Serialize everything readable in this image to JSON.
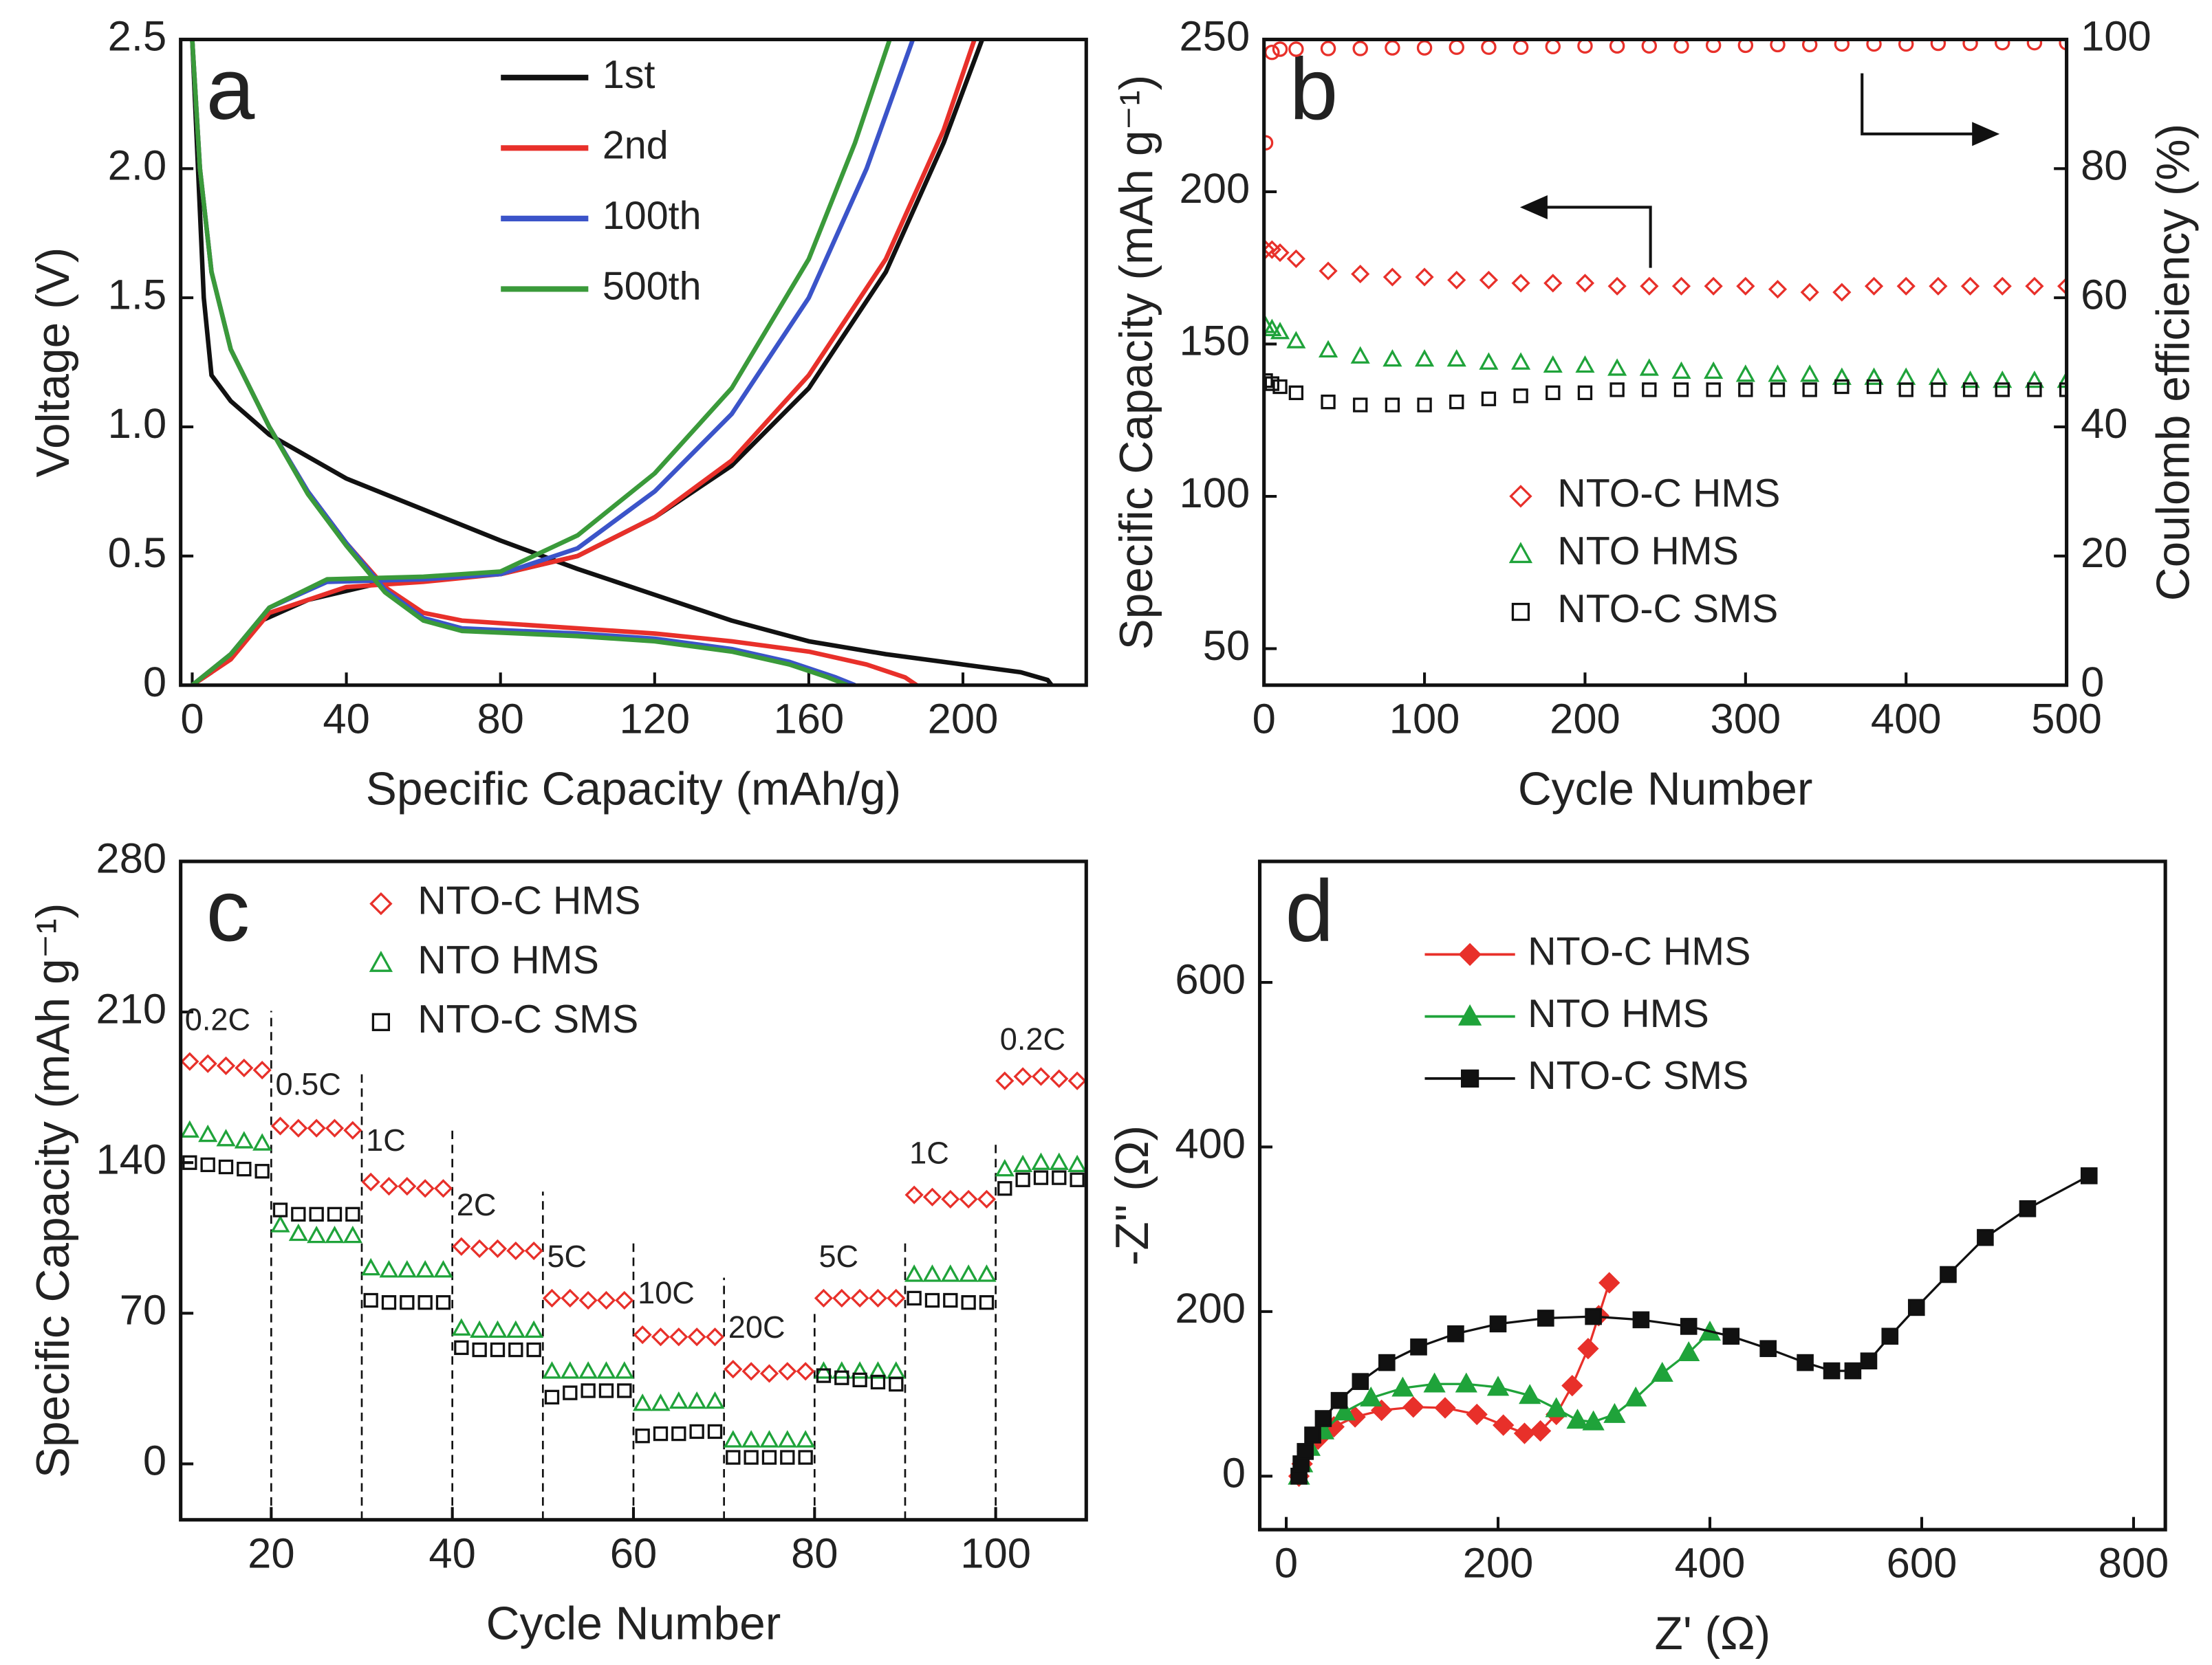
{
  "chart_data": [
    {
      "type": "line",
      "label": "a",
      "x_label": "Specific Capacity (mAh/g)",
      "y_label": "Voltage (V)",
      "xlim": [
        -3,
        232
      ],
      "ylim": [
        0,
        2.5
      ],
      "xticks": [
        0,
        40,
        80,
        120,
        160,
        200
      ],
      "yticks": [
        0,
        0.5,
        {
          "value": 1,
          "label": "1.0"
        },
        1.5,
        {
          "value": 2,
          "label": "2.0"
        },
        2.5
      ],
      "series": [
        {
          "name": "1st",
          "color": "#111111",
          "x": [
            0,
            3,
            5,
            10,
            20,
            40,
            60,
            80,
            100,
            120,
            140,
            160,
            180,
            200,
            215,
            222,
            223,
            null,
            0,
            5,
            10,
            18,
            30,
            50,
            80,
            100,
            120,
            140,
            160,
            180,
            195,
            205
          ],
          "values": [
            2.5,
            1.5,
            1.2,
            1.1,
            0.97,
            0.8,
            0.68,
            0.56,
            0.45,
            0.35,
            0.25,
            0.17,
            0.12,
            0.08,
            0.05,
            0.02,
            0,
            null,
            0,
            0.05,
            0.12,
            0.25,
            0.33,
            0.4,
            0.43,
            0.5,
            0.65,
            0.85,
            1.15,
            1.6,
            2.1,
            2.5
          ]
        },
        {
          "name": "2nd",
          "color": "#e8302a",
          "x": [
            0,
            2,
            5,
            10,
            20,
            30,
            40,
            50,
            60,
            70,
            100,
            120,
            140,
            160,
            175,
            185,
            188,
            null,
            0,
            10,
            20,
            40,
            60,
            80,
            100,
            120,
            140,
            160,
            180,
            195,
            203
          ],
          "values": [
            2.5,
            2.0,
            1.6,
            1.3,
            1.0,
            0.75,
            0.55,
            0.38,
            0.28,
            0.25,
            0.22,
            0.2,
            0.17,
            0.13,
            0.08,
            0.03,
            0,
            null,
            0,
            0.1,
            0.28,
            0.38,
            0.4,
            0.43,
            0.5,
            0.65,
            0.87,
            1.2,
            1.65,
            2.15,
            2.5
          ]
        },
        {
          "name": "100th",
          "color": "#3b54c9",
          "x": [
            0,
            2,
            5,
            10,
            20,
            30,
            40,
            50,
            60,
            70,
            100,
            120,
            140,
            155,
            167,
            172,
            null,
            0,
            10,
            20,
            35,
            60,
            80,
            100,
            120,
            140,
            160,
            175,
            187
          ],
          "values": [
            2.5,
            2.0,
            1.6,
            1.3,
            1.0,
            0.75,
            0.55,
            0.37,
            0.26,
            0.22,
            0.2,
            0.18,
            0.14,
            0.09,
            0.03,
            0,
            null,
            0,
            0.12,
            0.3,
            0.4,
            0.41,
            0.43,
            0.53,
            0.75,
            1.05,
            1.5,
            2.0,
            2.5
          ]
        },
        {
          "name": "500th",
          "color": "#3a9a3a",
          "x": [
            0,
            2,
            5,
            10,
            20,
            30,
            40,
            50,
            60,
            70,
            100,
            120,
            140,
            155,
            165,
            170,
            null,
            0,
            10,
            20,
            35,
            60,
            80,
            100,
            120,
            140,
            160,
            172,
            181
          ],
          "values": [
            2.5,
            2.0,
            1.6,
            1.3,
            1.0,
            0.74,
            0.54,
            0.36,
            0.25,
            0.21,
            0.19,
            0.17,
            0.13,
            0.08,
            0.03,
            0,
            null,
            0,
            0.12,
            0.3,
            0.41,
            0.42,
            0.44,
            0.58,
            0.82,
            1.15,
            1.65,
            2.1,
            2.5
          ]
        }
      ]
    },
    {
      "type": "scatter",
      "label": "b",
      "x_label": "Cycle Number",
      "y_label": "Specific Capacity (mAh g⁻¹)",
      "y2_label": "Coulomb efficiency (%)",
      "xlim": [
        0,
        500
      ],
      "ylim": [
        38,
        250
      ],
      "y2lim": [
        0,
        100
      ],
      "xticks": [
        0,
        100,
        200,
        300,
        400,
        500
      ],
      "yticks": [
        50,
        100,
        150,
        200,
        250
      ],
      "y2ticks": [
        0,
        20,
        40,
        60,
        80,
        100
      ],
      "x": [
        1,
        5,
        10,
        20,
        40,
        60,
        80,
        100,
        120,
        140,
        160,
        180,
        200,
        220,
        240,
        260,
        280,
        300,
        320,
        340,
        360,
        380,
        400,
        420,
        440,
        460,
        480,
        500
      ],
      "series": [
        {
          "name": "NTO-C HMS",
          "color": "#e8302a",
          "marker": "diamond",
          "values": [
            181,
            181,
            180,
            178,
            174,
            173,
            172,
            172,
            171,
            171,
            170,
            170,
            170,
            169,
            169,
            169,
            169,
            169,
            168,
            167,
            167,
            169,
            169,
            169,
            169,
            169,
            169,
            169
          ]
        },
        {
          "name": "NTO HMS",
          "color": "#1fa33a",
          "marker": "triangle",
          "values": [
            156,
            155,
            154,
            151,
            148,
            146,
            145,
            145,
            145,
            144,
            144,
            143,
            143,
            142,
            142,
            141,
            141,
            140,
            140,
            140,
            139,
            139,
            139,
            139,
            138,
            138,
            138,
            138
          ]
        },
        {
          "name": "NTO-C SMS",
          "color": "#111111",
          "marker": "square",
          "values": [
            138,
            137,
            136,
            134,
            131,
            130,
            130,
            130,
            131,
            132,
            133,
            134,
            134,
            135,
            135,
            135,
            135,
            135,
            135,
            135,
            136,
            136,
            135,
            135,
            135,
            135,
            135,
            135
          ]
        },
        {
          "color": "#e8302a",
          "marker": "circle",
          "axis": "y2",
          "values": [
            84,
            98,
            98.5,
            98.5,
            98.6,
            98.6,
            98.7,
            98.7,
            98.8,
            98.8,
            98.8,
            98.9,
            99,
            99,
            99,
            99,
            99.1,
            99.1,
            99.2,
            99.2,
            99.3,
            99.3,
            99.3,
            99.4,
            99.4,
            99.5,
            99.5,
            99.5
          ]
        }
      ]
    },
    {
      "type": "scatter",
      "label": "c",
      "x_label": "Cycle Number",
      "y_label": "Specific Capacity (mAh g⁻¹)",
      "xlim": [
        10,
        110
      ],
      "ylim": [
        -26,
        280
      ],
      "xticks": [
        20,
        40,
        60,
        80,
        100
      ],
      "yticks": [
        0,
        70,
        140,
        210,
        280
      ],
      "annotations": [
        "0.2C",
        "0.5C",
        "1C",
        "2C",
        "5C",
        "10C",
        "20C",
        "5C",
        "1C",
        "0.2C"
      ],
      "x": [
        11,
        13,
        15,
        17,
        19,
        21,
        23,
        25,
        27,
        29,
        31,
        33,
        35,
        37,
        39,
        41,
        43,
        45,
        47,
        49,
        51,
        53,
        55,
        57,
        59,
        61,
        63,
        65,
        67,
        69,
        71,
        73,
        75,
        77,
        79,
        81,
        83,
        85,
        87,
        89,
        91,
        93,
        95,
        97,
        99,
        101,
        103,
        105,
        107,
        109
      ],
      "series": [
        {
          "name": "NTO-C HMS",
          "color": "#e8302a",
          "marker": "diamond",
          "values": [
            187,
            186,
            185,
            184,
            183,
            157,
            156,
            156,
            156,
            155,
            131,
            129,
            129,
            128,
            128,
            101,
            100,
            100,
            99,
            99,
            77,
            77,
            76,
            76,
            76,
            60,
            59,
            59,
            59,
            59,
            44,
            43,
            42,
            43,
            43,
            77,
            77,
            77,
            77,
            77,
            125,
            124,
            123,
            123,
            123,
            178,
            180,
            180,
            179,
            178
          ]
        },
        {
          "name": "NTO HMS",
          "color": "#1fa33a",
          "marker": "triangle",
          "values": [
            155,
            153,
            151,
            150,
            149,
            111,
            107,
            106,
            106,
            106,
            91,
            90,
            90,
            90,
            90,
            63,
            62,
            62,
            62,
            62,
            43,
            43,
            43,
            43,
            43,
            28,
            28,
            29,
            29,
            29,
            11,
            11,
            11,
            11,
            11,
            43,
            43,
            43,
            43,
            43,
            88,
            88,
            88,
            88,
            88,
            137,
            139,
            140,
            140,
            139
          ]
        },
        {
          "name": "NTO-C SMS",
          "color": "#111111",
          "marker": "square",
          "values": [
            140,
            139,
            138,
            137,
            136,
            118,
            116,
            116,
            116,
            116,
            76,
            75,
            75,
            75,
            75,
            54,
            53,
            53,
            53,
            53,
            31,
            33,
            34,
            34,
            34,
            13,
            14,
            14,
            15,
            15,
            3,
            3,
            3,
            3,
            3,
            41,
            40,
            39,
            38,
            37,
            77,
            76,
            76,
            75,
            75,
            128,
            132,
            133,
            133,
            132
          ]
        }
      ]
    },
    {
      "type": "line",
      "label": "d",
      "x_label": "Z' (Ω)",
      "y_label": "-Z'' (Ω)",
      "filled": true,
      "xlim": [
        -25,
        830
      ],
      "ylim": [
        -65,
        747
      ],
      "xticks": [
        0,
        200,
        400,
        600,
        800
      ],
      "yticks": [
        0,
        200,
        400,
        600
      ],
      "series": [
        {
          "name": "NTO-C HMS",
          "color": "#e8302a",
          "marker": "diamond",
          "x": [
            12,
            15,
            20,
            30,
            45,
            65,
            90,
            120,
            150,
            180,
            205,
            225,
            240,
            255,
            270,
            285,
            295,
            305
          ],
          "values": [
            0,
            15,
            30,
            45,
            60,
            72,
            80,
            84,
            83,
            75,
            62,
            52,
            55,
            75,
            110,
            155,
            195,
            235
          ]
        },
        {
          "name": "NTO HMS",
          "color": "#1fa33a",
          "marker": "triangle",
          "x": [
            12,
            15,
            22,
            35,
            55,
            80,
            110,
            140,
            170,
            200,
            230,
            255,
            275,
            290,
            310,
            330,
            355,
            380,
            400
          ],
          "values": [
            0,
            15,
            35,
            55,
            78,
            95,
            107,
            112,
            112,
            108,
            98,
            82,
            68,
            66,
            75,
            95,
            125,
            150,
            175
          ]
        },
        {
          "name": "NTO-C SMS",
          "color": "#111111",
          "marker": "square",
          "x": [
            12,
            14,
            18,
            25,
            35,
            50,
            70,
            95,
            125,
            160,
            200,
            245,
            290,
            335,
            380,
            420,
            455,
            490,
            515,
            535,
            550,
            570,
            595,
            625,
            660,
            700,
            758
          ],
          "values": [
            0,
            15,
            30,
            50,
            70,
            92,
            115,
            138,
            157,
            173,
            185,
            192,
            194,
            190,
            182,
            170,
            155,
            138,
            128,
            128,
            140,
            170,
            205,
            245,
            290,
            325,
            365
          ]
        }
      ]
    }
  ]
}
